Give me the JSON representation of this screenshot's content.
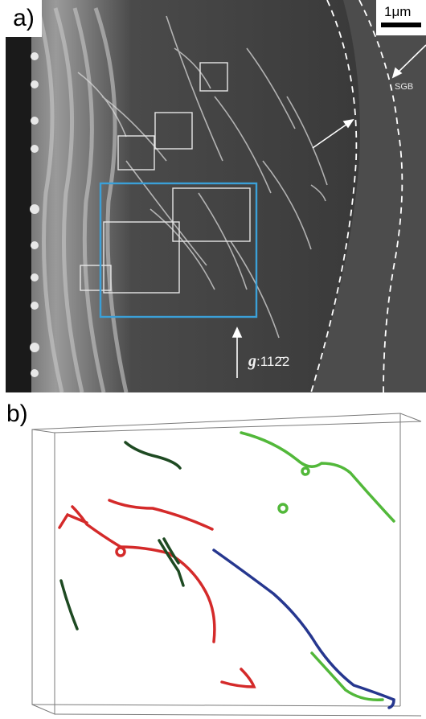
{
  "figure": {
    "panel_a": {
      "label": "a)",
      "scale_bar": "1μm",
      "boundary_label": "SGB",
      "g_vector_symbol": "g",
      "g_vector_value": ":11̅2̅ 2",
      "g_vector_display": ":112̄2"
    },
    "panel_b": {
      "label": "b)"
    },
    "colors": {
      "red": "#d42a2a",
      "green": "#52b83a",
      "dark_green": "#1e4a22",
      "blue": "#26378f",
      "highlight_box": "#3ba0d8",
      "sub_box": "#e6e6e6"
    }
  }
}
